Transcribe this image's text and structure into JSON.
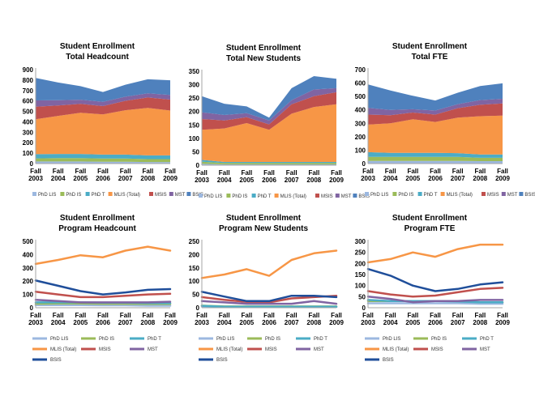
{
  "chart_data": [
    {
      "type": "area",
      "title": [
        "Student Enrollment",
        "Total Headcount"
      ],
      "x": [
        "Fall 2003",
        "Fall 2004",
        "Fall 2005",
        "Fall 2006",
        "Fall 2007",
        "Fall 2008",
        "Fall 2009"
      ],
      "ylim": [
        0,
        900
      ],
      "yticks": [
        0,
        100,
        200,
        300,
        400,
        500,
        600,
        700,
        800,
        900
      ],
      "stacked": true,
      "legend_position": "bottom",
      "series": [
        {
          "name": "PhD LIS",
          "color": "#9cb8e0",
          "values": [
            20,
            20,
            20,
            18,
            18,
            15,
            15
          ]
        },
        {
          "name": "PhD IS",
          "color": "#9bbb59",
          "values": [
            30,
            32,
            32,
            30,
            30,
            28,
            28
          ]
        },
        {
          "name": "PhD T",
          "color": "#4bacc6",
          "values": [
            40,
            40,
            40,
            38,
            38,
            35,
            35
          ]
        },
        {
          "name": "MLIS (Total)",
          "color": "#f79646",
          "values": [
            335,
            365,
            395,
            385,
            425,
            455,
            430
          ]
        },
        {
          "name": "MSIS",
          "color": "#c0504d",
          "values": [
            120,
            100,
            85,
            80,
            90,
            100,
            105
          ]
        },
        {
          "name": "MST",
          "color": "#8064a2",
          "values": [
            60,
            50,
            40,
            40,
            40,
            40,
            45
          ]
        },
        {
          "name": "BSIS",
          "color": "#4f81bd",
          "values": [
            215,
            170,
            130,
            95,
            115,
            135,
            140
          ]
        }
      ]
    },
    {
      "type": "area",
      "title": [
        "Student Enrollment",
        "Total New  Students"
      ],
      "x": [
        "Fall 2003",
        "Fall 2004",
        "Fall 2005",
        "Fall 2006",
        "Fall 2007",
        "Fall 2008",
        "Fall 2009"
      ],
      "ylim": [
        0,
        350
      ],
      "yticks": [
        0,
        50,
        100,
        150,
        200,
        250,
        300,
        350
      ],
      "stacked": true,
      "legend_position": "bottom",
      "series": [
        {
          "name": "PhD LIS",
          "color": "#9cb8e0",
          "values": [
            5,
            3,
            3,
            3,
            3,
            3,
            3
          ]
        },
        {
          "name": "PhD IS",
          "color": "#9bbb59",
          "values": [
            8,
            5,
            5,
            5,
            5,
            5,
            5
          ]
        },
        {
          "name": "PhD T",
          "color": "#4bacc6",
          "values": [
            7,
            4,
            4,
            4,
            4,
            4,
            4
          ]
        },
        {
          "name": "MLIS (Total)",
          "color": "#f79646",
          "values": [
            112,
            125,
            145,
            120,
            180,
            205,
            215
          ]
        },
        {
          "name": "MSIS",
          "color": "#c0504d",
          "values": [
            40,
            30,
            22,
            20,
            35,
            40,
            45
          ]
        },
        {
          "name": "MST",
          "color": "#8064a2",
          "values": [
            25,
            20,
            15,
            15,
            15,
            25,
            15
          ]
        },
        {
          "name": "BSIS",
          "color": "#4f81bd",
          "values": [
            60,
            42,
            25,
            10,
            45,
            50,
            35
          ]
        }
      ]
    },
    {
      "type": "area",
      "title": [
        "Student Enrollment",
        "Total FTE"
      ],
      "x": [
        "Fall 2003",
        "Fall 2004",
        "Fall 2005",
        "Fall 2006",
        "Fall 2007",
        "Fall 2008",
        "Fall 2009"
      ],
      "ylim": [
        0,
        700
      ],
      "yticks": [
        0,
        100,
        200,
        300,
        400,
        500,
        600,
        700
      ],
      "stacked": true,
      "legend_position": "bottom",
      "series": [
        {
          "name": "PhD LIS",
          "color": "#9cb8e0",
          "values": [
            20,
            20,
            20,
            20,
            20,
            18,
            18
          ]
        },
        {
          "name": "PhD IS",
          "color": "#9bbb59",
          "values": [
            30,
            30,
            30,
            30,
            30,
            25,
            25
          ]
        },
        {
          "name": "PhD T",
          "color": "#4bacc6",
          "values": [
            35,
            30,
            30,
            30,
            28,
            25,
            25
          ]
        },
        {
          "name": "MLIS (Total)",
          "color": "#f79646",
          "values": [
            205,
            220,
            250,
            230,
            265,
            285,
            290
          ]
        },
        {
          "name": "MSIS",
          "color": "#c0504d",
          "values": [
            75,
            60,
            50,
            55,
            70,
            85,
            90
          ]
        },
        {
          "name": "MST",
          "color": "#8064a2",
          "values": [
            50,
            40,
            25,
            30,
            30,
            35,
            35
          ]
        },
        {
          "name": "BSIS",
          "color": "#4f81bd",
          "values": [
            175,
            145,
            100,
            75,
            85,
            105,
            115
          ]
        }
      ]
    },
    {
      "type": "line",
      "title": [
        "Student Enrollment",
        "Program Headcount"
      ],
      "x": [
        "Fall 2003",
        "Fall 2004",
        "Fall 2005",
        "Fall 2006",
        "Fall 2007",
        "Fall 2008",
        "Fall 2009"
      ],
      "ylim": [
        0,
        500
      ],
      "yticks": [
        0,
        100,
        200,
        300,
        400,
        500
      ],
      "legend_position": "bottom",
      "series": [
        {
          "name": "PhD LIS",
          "color": "#9cb8e0",
          "values": [
            20,
            20,
            20,
            18,
            18,
            15,
            15
          ]
        },
        {
          "name": "PhD IS",
          "color": "#9bbb59",
          "values": [
            30,
            32,
            32,
            30,
            30,
            28,
            28
          ]
        },
        {
          "name": "PhD T",
          "color": "#4bacc6",
          "values": [
            40,
            40,
            40,
            38,
            38,
            35,
            35
          ]
        },
        {
          "name": "MLIS (Total)",
          "color": "#f79646",
          "values": [
            330,
            360,
            395,
            380,
            430,
            460,
            430
          ]
        },
        {
          "name": "MSIS",
          "color": "#c0504d",
          "values": [
            120,
            100,
            80,
            80,
            90,
            100,
            105
          ]
        },
        {
          "name": "MST",
          "color": "#8064a2",
          "values": [
            60,
            50,
            40,
            40,
            40,
            40,
            45
          ]
        },
        {
          "name": "BSIS",
          "color": "#1f4e9a",
          "values": [
            205,
            165,
            125,
            100,
            115,
            135,
            140
          ]
        }
      ]
    },
    {
      "type": "line",
      "title": [
        "Student Enrollment",
        "Program New Students"
      ],
      "x": [
        "Fall 2003",
        "Fall 2004",
        "Fall 2005",
        "Fall 2006",
        "Fall 2007",
        "Fall 2008",
        "Fall 2009"
      ],
      "ylim": [
        0,
        250
      ],
      "yticks": [
        0,
        50,
        100,
        150,
        200,
        250
      ],
      "legend_position": "bottom",
      "series": [
        {
          "name": "PhD LIS",
          "color": "#9cb8e0",
          "values": [
            5,
            3,
            3,
            3,
            3,
            3,
            3
          ]
        },
        {
          "name": "PhD IS",
          "color": "#9bbb59",
          "values": [
            8,
            5,
            5,
            5,
            5,
            5,
            5
          ]
        },
        {
          "name": "PhD T",
          "color": "#4bacc6",
          "values": [
            7,
            4,
            4,
            4,
            4,
            4,
            4
          ]
        },
        {
          "name": "MLIS (Total)",
          "color": "#f79646",
          "values": [
            112,
            125,
            145,
            120,
            180,
            205,
            215
          ]
        },
        {
          "name": "MSIS",
          "color": "#c0504d",
          "values": [
            40,
            30,
            22,
            20,
            35,
            40,
            45
          ]
        },
        {
          "name": "MST",
          "color": "#8064a2",
          "values": [
            25,
            20,
            15,
            15,
            15,
            25,
            15
          ]
        },
        {
          "name": "BSIS",
          "color": "#1f4e9a",
          "values": [
            60,
            42,
            25,
            25,
            45,
            45,
            40
          ]
        }
      ]
    },
    {
      "type": "line",
      "title": [
        "Student Enrollment",
        "Program FTE"
      ],
      "x": [
        "Fall 2003",
        "Fall 2004",
        "Fall 2005",
        "Fall 2006",
        "Fall 2007",
        "Fall 2008",
        "Fall 2009"
      ],
      "ylim": [
        0,
        300
      ],
      "yticks": [
        0,
        50,
        100,
        150,
        200,
        250,
        300
      ],
      "legend_position": "bottom",
      "series": [
        {
          "name": "PhD LIS",
          "color": "#9cb8e0",
          "values": [
            20,
            20,
            20,
            20,
            20,
            18,
            18
          ]
        },
        {
          "name": "PhD IS",
          "color": "#9bbb59",
          "values": [
            30,
            30,
            30,
            30,
            30,
            25,
            25
          ]
        },
        {
          "name": "PhD T",
          "color": "#4bacc6",
          "values": [
            35,
            30,
            30,
            30,
            28,
            25,
            25
          ]
        },
        {
          "name": "MLIS (Total)",
          "color": "#f79646",
          "values": [
            205,
            220,
            250,
            230,
            265,
            285,
            285
          ]
        },
        {
          "name": "MSIS",
          "color": "#c0504d",
          "values": [
            75,
            60,
            50,
            55,
            70,
            85,
            90
          ]
        },
        {
          "name": "MST",
          "color": "#8064a2",
          "values": [
            50,
            40,
            25,
            30,
            30,
            35,
            35
          ]
        },
        {
          "name": "BSIS",
          "color": "#1f4e9a",
          "values": [
            175,
            145,
            100,
            75,
            85,
            105,
            115
          ]
        }
      ]
    }
  ]
}
